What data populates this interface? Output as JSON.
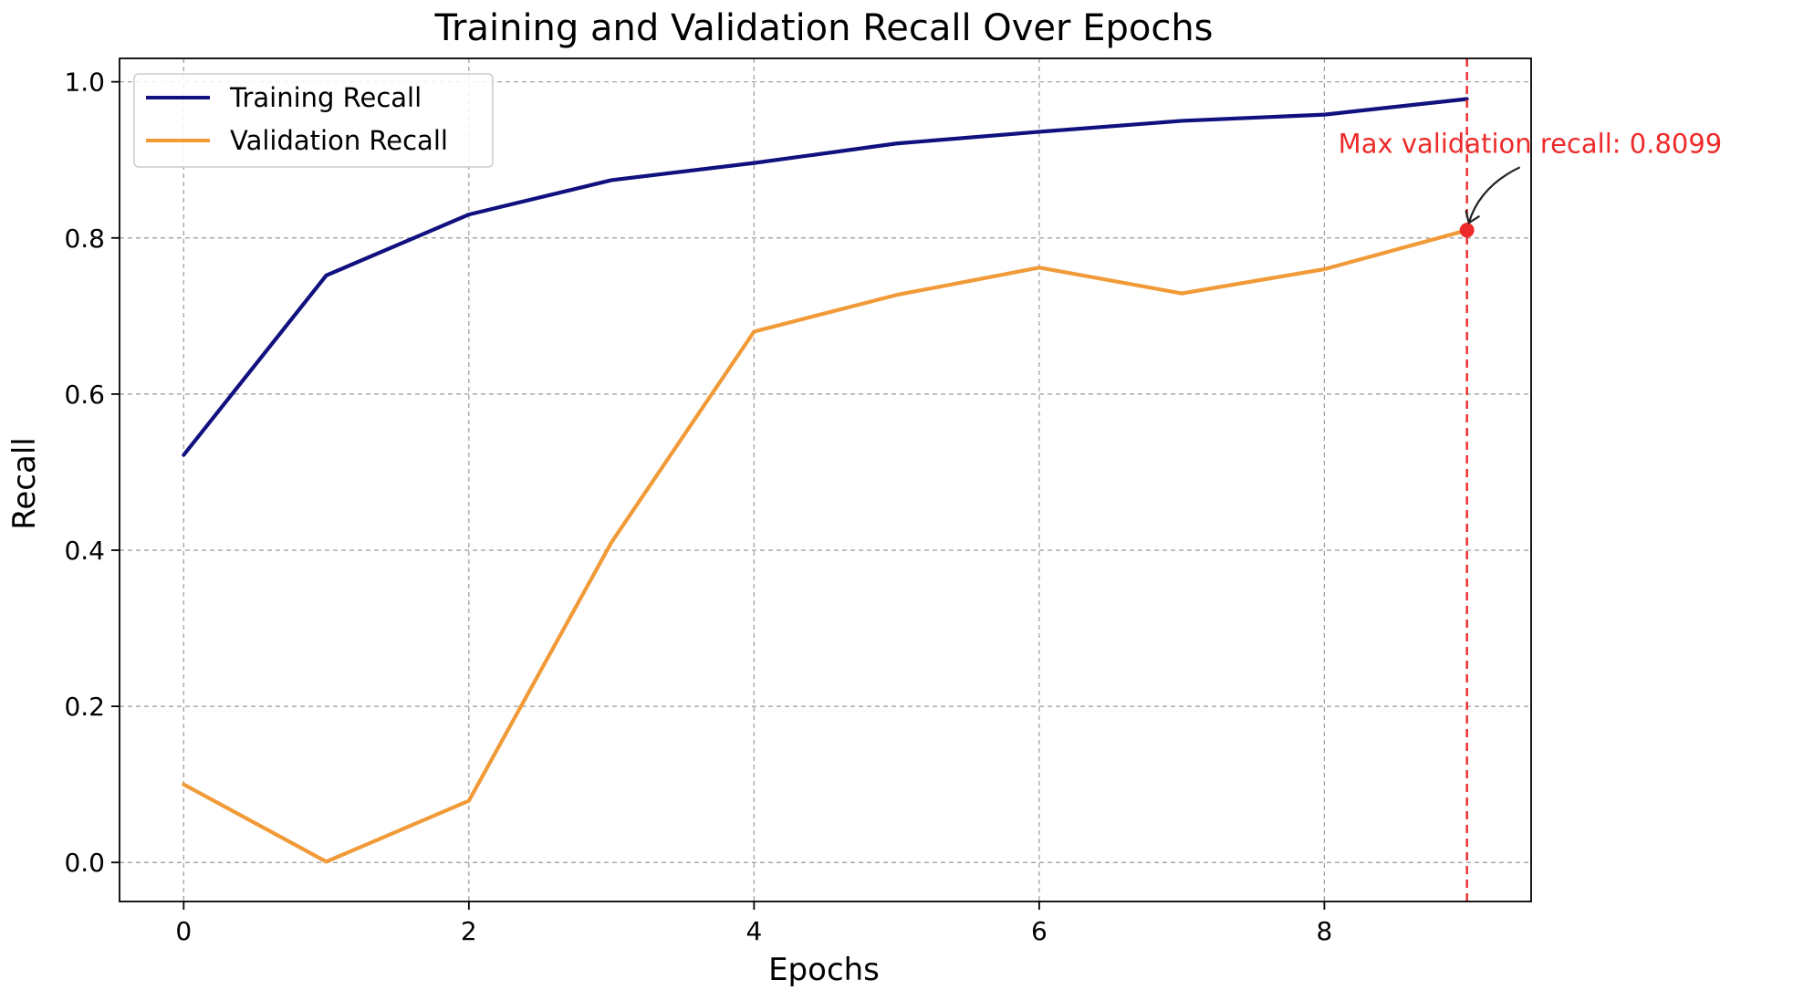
{
  "chart_data": {
    "type": "line",
    "title": "Training and Validation Recall Over Epochs",
    "xlabel": "Epochs",
    "ylabel": "Recall",
    "xlim": [
      -0.45,
      9.45
    ],
    "ylim": [
      -0.05,
      1.03
    ],
    "x": [
      0,
      1,
      2,
      3,
      4,
      5,
      6,
      7,
      8,
      9
    ],
    "xticks": [
      0,
      2,
      4,
      6,
      8
    ],
    "xtick_labels": [
      "0",
      "2",
      "4",
      "6",
      "8"
    ],
    "yticks": [
      0.0,
      0.2,
      0.4,
      0.6,
      0.8,
      1.0
    ],
    "ytick_labels": [
      "0.0",
      "0.2",
      "0.4",
      "0.6",
      "0.8",
      "1.0"
    ],
    "grid": true,
    "grid_style": "dashed",
    "legend_position": "upper-left",
    "series": [
      {
        "name": "Training Recall",
        "color": "#10107f",
        "values": [
          0.522,
          0.752,
          0.83,
          0.874,
          0.896,
          0.921,
          0.936,
          0.95,
          0.958,
          0.978
        ]
      },
      {
        "name": "Validation Recall",
        "color": "#f09a38",
        "values": [
          0.1,
          0.001,
          0.079,
          0.41,
          0.68,
          0.727,
          0.762,
          0.729,
          0.76,
          0.8099
        ]
      }
    ],
    "annotation": {
      "text": "Max validation recall: 0.8099",
      "x": 9,
      "y": 0.8099,
      "color": "#ee2a2a",
      "marker": "point",
      "vertical_line": "dashed"
    }
  }
}
